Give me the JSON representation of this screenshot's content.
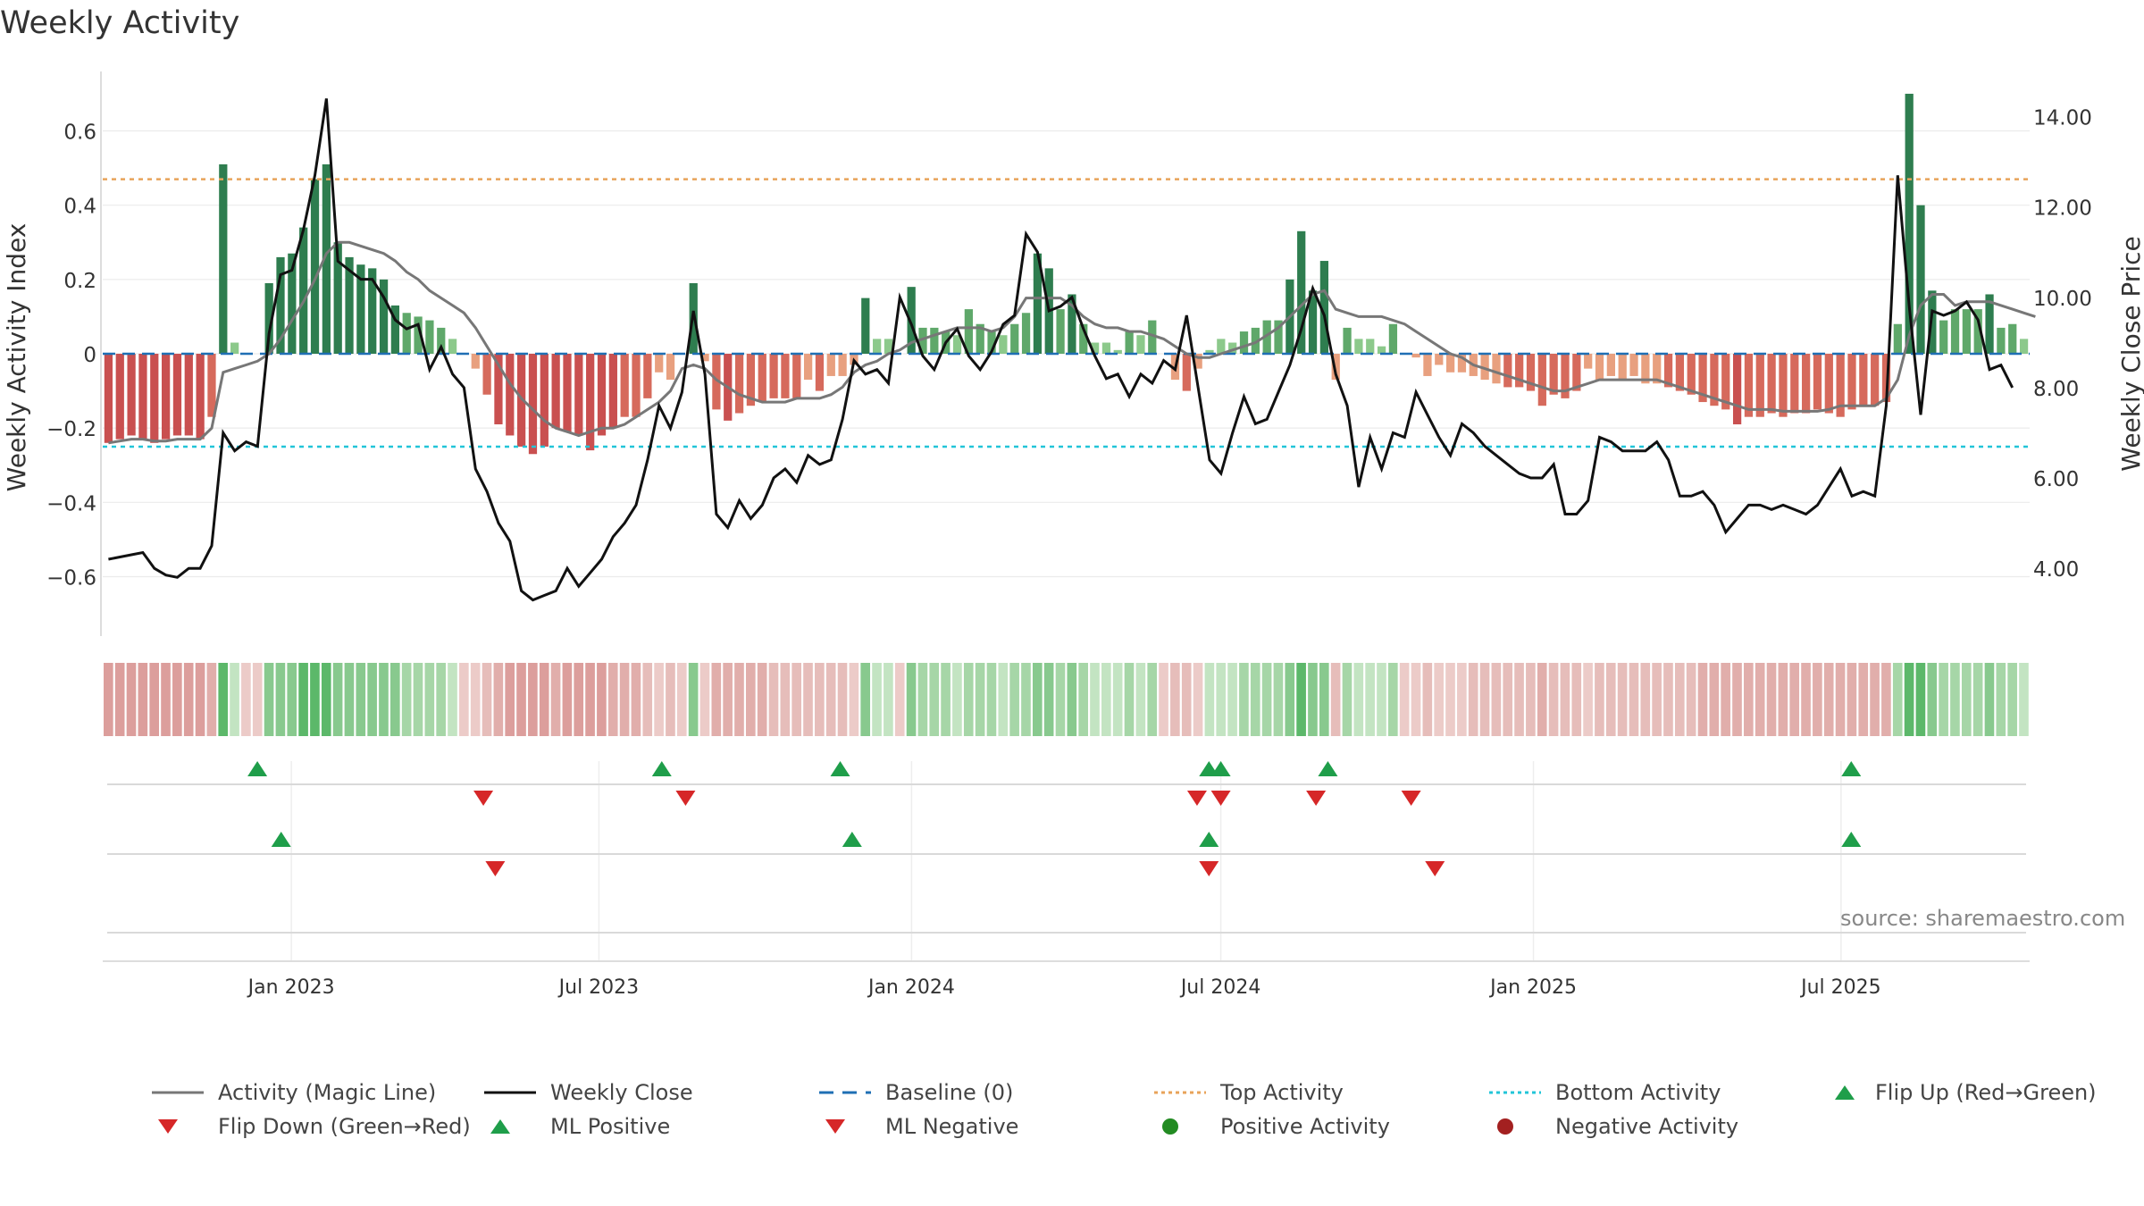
{
  "title": "Weekly Activity",
  "source": "source: sharemaestro.com",
  "colors": {
    "pos_dark": "#2e7d4f",
    "pos_mid": "#5fa86a",
    "pos_light": "#8cc98b",
    "neg_dark": "#c95050",
    "neg_mid": "#d66a5c",
    "neg_light": "#e8a07f",
    "magic": "#777777",
    "close": "#111111",
    "baseline": "#1f6fb4",
    "top": "#e8a35a",
    "bottom": "#22c5d8",
    "flip_up": "#1f9e4a",
    "flip_down": "#d62728"
  },
  "chart_data": {
    "type": "bar+line",
    "title": "Weekly Activity",
    "ylabel": "Weekly Activity Index",
    "y2label": "Weekly Close Price",
    "ylim": [
      -0.76,
      0.76
    ],
    "y2lim": [
      2.5,
      15.0
    ],
    "yticks": [
      0.6,
      0.4,
      0.2,
      0,
      -0.2,
      -0.4,
      -0.6
    ],
    "ytick_labels": [
      "0.6",
      "0.4",
      "0.2",
      "0",
      "−0.2",
      "−0.4",
      "−0.6"
    ],
    "y2ticks": [
      14,
      12,
      10,
      8,
      6,
      4
    ],
    "y2tick_labels": [
      "14.00",
      "12.00",
      "10.00",
      "8.00",
      "6.00",
      "4.00"
    ],
    "x_start": "2022-09-12",
    "x_end": "2025-10-20",
    "xticks": [
      {
        "date": "2023-01-01",
        "label": "Jan 2023"
      },
      {
        "date": "2023-07-01",
        "label": "Jul 2023"
      },
      {
        "date": "2024-01-01",
        "label": "Jan 2024"
      },
      {
        "date": "2024-07-01",
        "label": "Jul 2024"
      },
      {
        "date": "2025-01-01",
        "label": "Jan 2025"
      },
      {
        "date": "2025-07-01",
        "label": "Jul 2025"
      }
    ],
    "top_activity": 0.47,
    "bottom_activity": -0.25,
    "baseline": 0,
    "activity": [
      -0.24,
      -0.23,
      -0.22,
      -0.23,
      -0.24,
      -0.23,
      -0.22,
      -0.22,
      -0.23,
      -0.17,
      0.51,
      0.03,
      0.0,
      0.0,
      0.19,
      0.26,
      0.27,
      0.34,
      0.47,
      0.51,
      0.3,
      0.26,
      0.24,
      0.23,
      0.2,
      0.13,
      0.11,
      0.1,
      0.09,
      0.07,
      0.04,
      0.0,
      -0.04,
      -0.11,
      -0.19,
      -0.22,
      -0.25,
      -0.27,
      -0.25,
      -0.2,
      -0.21,
      -0.22,
      -0.26,
      -0.22,
      -0.2,
      -0.17,
      -0.17,
      -0.12,
      -0.05,
      -0.07,
      0.0,
      0.19,
      -0.02,
      -0.15,
      -0.18,
      -0.16,
      -0.14,
      -0.13,
      -0.12,
      -0.12,
      -0.12,
      -0.07,
      -0.1,
      -0.06,
      -0.06,
      -0.03,
      0.15,
      0.04,
      0.04,
      0.0,
      0.18,
      0.07,
      0.07,
      0.06,
      0.05,
      0.12,
      0.08,
      0.06,
      0.05,
      0.08,
      0.11,
      0.27,
      0.23,
      0.12,
      0.16,
      0.08,
      0.03,
      0.03,
      0.01,
      0.06,
      0.05,
      0.09,
      0.0,
      -0.07,
      -0.1,
      -0.04,
      0.01,
      0.04,
      0.03,
      0.06,
      0.07,
      0.09,
      0.09,
      0.2,
      0.33,
      0.17,
      0.25,
      -0.07,
      0.07,
      0.04,
      0.04,
      0.02,
      0.08,
      0.0,
      -0.01,
      -0.06,
      -0.03,
      -0.05,
      -0.05,
      -0.06,
      -0.07,
      -0.08,
      -0.09,
      -0.09,
      -0.1,
      -0.14,
      -0.11,
      -0.12,
      -0.1,
      -0.04,
      -0.07,
      -0.06,
      -0.07,
      -0.06,
      -0.08,
      -0.08,
      -0.09,
      -0.1,
      -0.11,
      -0.13,
      -0.14,
      -0.15,
      -0.19,
      -0.17,
      -0.17,
      -0.16,
      -0.17,
      -0.16,
      -0.16,
      -0.15,
      -0.16,
      -0.17,
      -0.15,
      -0.14,
      -0.14,
      -0.13,
      0.08,
      0.7,
      0.4,
      0.17,
      0.09,
      0.12,
      0.12,
      0.12,
      0.16,
      0.07,
      0.08,
      0.04
    ],
    "weekly_close": [
      4.2,
      4.25,
      4.3,
      4.35,
      4.0,
      3.85,
      3.8,
      4.0,
      4.0,
      4.5,
      7.0,
      6.6,
      6.8,
      6.7,
      9.2,
      10.5,
      10.6,
      11.5,
      12.7,
      14.4,
      10.8,
      10.6,
      10.4,
      10.4,
      10.0,
      9.5,
      9.3,
      9.4,
      8.4,
      8.9,
      8.3,
      8.0,
      6.2,
      5.7,
      5.0,
      4.6,
      3.5,
      3.3,
      3.4,
      3.5,
      4.0,
      3.6,
      3.9,
      4.2,
      4.7,
      5.0,
      5.4,
      6.4,
      7.6,
      7.1,
      7.9,
      9.7,
      8.3,
      5.2,
      4.9,
      5.5,
      5.1,
      5.4,
      6.0,
      6.2,
      5.9,
      6.5,
      6.3,
      6.4,
      7.3,
      8.6,
      8.3,
      8.4,
      8.1,
      10.0,
      9.4,
      8.7,
      8.4,
      9.0,
      9.3,
      8.7,
      8.4,
      8.8,
      9.4,
      9.6,
      11.4,
      11.0,
      9.7,
      9.8,
      10.0,
      9.3,
      8.7,
      8.2,
      8.3,
      7.8,
      8.3,
      8.1,
      8.6,
      8.4,
      9.6,
      8.0,
      6.4,
      6.1,
      7.0,
      7.8,
      7.2,
      7.3,
      7.9,
      8.5,
      9.3,
      10.2,
      9.6,
      8.3,
      7.6,
      5.8,
      6.9,
      6.2,
      7.0,
      6.9,
      7.9,
      7.4,
      6.9,
      6.5,
      7.2,
      7.0,
      6.7,
      6.5,
      6.3,
      6.1,
      6.0,
      6.0,
      6.3,
      5.2,
      5.2,
      5.5,
      6.9,
      6.8,
      6.6,
      6.6,
      6.6,
      6.8,
      6.4,
      5.6,
      5.6,
      5.7,
      5.4,
      4.8,
      5.1,
      5.4,
      5.4,
      5.3,
      5.4,
      5.3,
      5.2,
      5.4,
      5.8,
      6.2,
      5.6,
      5.7,
      5.6,
      7.6,
      12.7,
      9.8,
      7.4,
      9.7,
      9.6,
      9.7,
      9.9,
      9.5,
      8.4,
      8.5,
      8.0
    ],
    "magic_line": [
      -0.24,
      -0.235,
      -0.23,
      -0.23,
      -0.235,
      -0.235,
      -0.23,
      -0.23,
      -0.23,
      -0.2,
      -0.05,
      -0.04,
      -0.03,
      -0.02,
      0.0,
      0.04,
      0.09,
      0.14,
      0.2,
      0.27,
      0.3,
      0.3,
      0.29,
      0.28,
      0.27,
      0.25,
      0.22,
      0.2,
      0.17,
      0.15,
      0.13,
      0.11,
      0.07,
      0.02,
      -0.03,
      -0.08,
      -0.12,
      -0.15,
      -0.18,
      -0.2,
      -0.21,
      -0.22,
      -0.21,
      -0.2,
      -0.2,
      -0.19,
      -0.17,
      -0.15,
      -0.13,
      -0.1,
      -0.04,
      -0.03,
      -0.04,
      -0.07,
      -0.09,
      -0.11,
      -0.12,
      -0.13,
      -0.13,
      -0.13,
      -0.12,
      -0.12,
      -0.12,
      -0.11,
      -0.09,
      -0.05,
      -0.03,
      -0.02,
      0.0,
      0.01,
      0.03,
      0.04,
      0.05,
      0.06,
      0.07,
      0.07,
      0.07,
      0.06,
      0.07,
      0.1,
      0.15,
      0.15,
      0.15,
      0.15,
      0.13,
      0.1,
      0.08,
      0.07,
      0.07,
      0.06,
      0.06,
      0.05,
      0.04,
      0.02,
      0.0,
      -0.01,
      -0.01,
      0.0,
      0.01,
      0.02,
      0.03,
      0.05,
      0.07,
      0.1,
      0.13,
      0.16,
      0.17,
      0.12,
      0.11,
      0.1,
      0.1,
      0.1,
      0.09,
      0.08,
      0.06,
      0.04,
      0.02,
      0.0,
      -0.01,
      -0.03,
      -0.04,
      -0.05,
      -0.06,
      -0.07,
      -0.08,
      -0.09,
      -0.1,
      -0.1,
      -0.09,
      -0.08,
      -0.07,
      -0.07,
      -0.07,
      -0.07,
      -0.07,
      -0.07,
      -0.08,
      -0.09,
      -0.1,
      -0.11,
      -0.12,
      -0.13,
      -0.14,
      -0.15,
      -0.15,
      -0.15,
      -0.155,
      -0.155,
      -0.155,
      -0.155,
      -0.15,
      -0.14,
      -0.14,
      -0.14,
      -0.14,
      -0.12,
      -0.07,
      0.05,
      0.13,
      0.16,
      0.16,
      0.13,
      0.14,
      0.14,
      0.14,
      0.13,
      0.12,
      0.11,
      0.1
    ],
    "flip_up_dates": [
      "2022-12-12",
      "2023-08-07",
      "2023-11-20",
      "2024-06-24",
      "2024-07-01",
      "2024-09-02",
      "2025-07-07"
    ],
    "flip_down_dates": [
      "2023-04-24",
      "2023-08-21",
      "2024-06-17",
      "2024-07-01",
      "2024-08-26",
      "2024-10-21"
    ],
    "ml_positive_dates": [
      "2022-12-26",
      "2023-11-27",
      "2024-06-24",
      "2025-07-07"
    ],
    "ml_negative_dates": [
      "2023-05-01",
      "2024-06-24",
      "2024-11-04"
    ]
  },
  "legend": {
    "magic": "Activity (Magic Line)",
    "close": "Weekly Close",
    "baseline": "Baseline (0)",
    "top": "Top Activity",
    "bottom": "Bottom Activity",
    "flip_up": "Flip Up (Red→Green)",
    "flip_down": "Flip Down (Green→Red)",
    "ml_pos": "ML Positive",
    "ml_neg": "ML Negative",
    "pos_act": "Positive Activity",
    "neg_act": "Negative Activity"
  }
}
